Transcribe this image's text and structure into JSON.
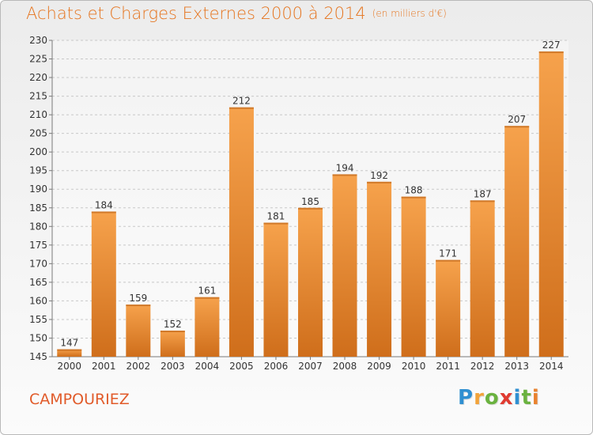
{
  "header": {
    "title": "Achats et Charges Externes 2000 à 2014",
    "unit": "(en milliers d'€)"
  },
  "footer": {
    "commune": "CAMPOURIEZ",
    "logo_letters": [
      "P",
      "r",
      "o",
      "x",
      "i",
      "t",
      "i"
    ],
    "logo_colors": [
      "#2f8fd1",
      "#f2a33a",
      "#6ab23f",
      "#e03b31",
      "#2f8fd1",
      "#6ab23f",
      "#e9822e"
    ]
  },
  "colors": {
    "bar_light": "#f6a24c",
    "bar_dark": "#cf6e1b",
    "grid": "#c8c8c8",
    "axis": "#7a7a7a",
    "accent": "#e57520"
  },
  "chart_data": {
    "type": "bar",
    "title": "Achats et Charges Externes 2000 à 2014",
    "xlabel": "",
    "ylabel": "",
    "categories": [
      "2000",
      "2001",
      "2002",
      "2003",
      "2004",
      "2005",
      "2006",
      "2007",
      "2008",
      "2009",
      "2010",
      "2011",
      "2012",
      "2013",
      "2014"
    ],
    "values": [
      147,
      184,
      159,
      152,
      161,
      212,
      181,
      185,
      194,
      192,
      188,
      171,
      187,
      207,
      227
    ],
    "ylim": [
      145,
      230
    ],
    "ytick_step": 5,
    "grid": true,
    "data_labels": true
  }
}
